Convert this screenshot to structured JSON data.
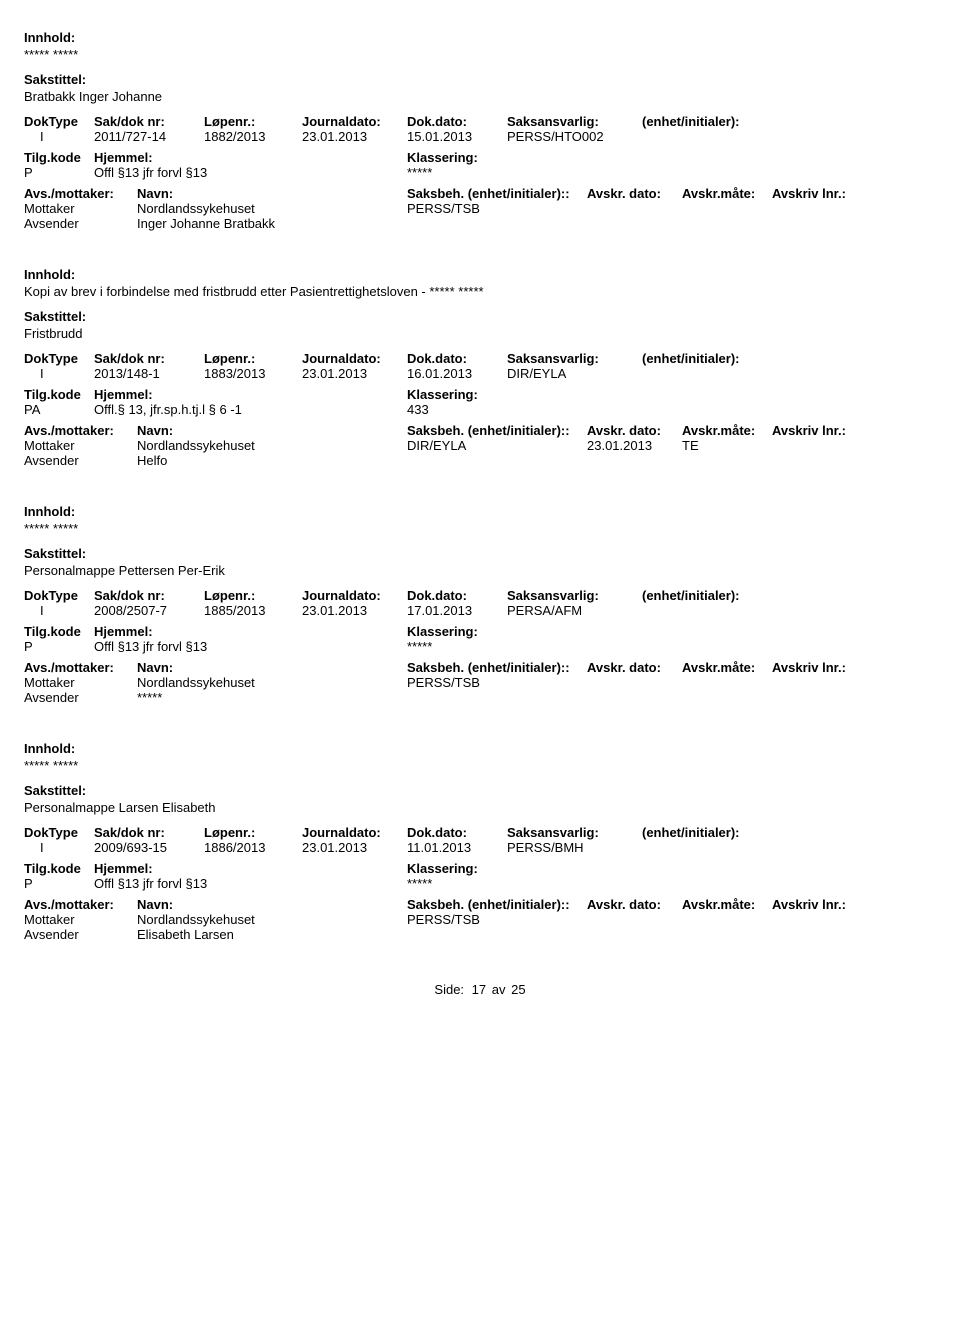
{
  "labels": {
    "innhold": "Innhold:",
    "sakstittel": "Sakstittel:",
    "dokType": "DokType",
    "sakdok": "Sak/dok nr:",
    "lopenr": "Løpenr.:",
    "journaldato": "Journaldato:",
    "dokdato": "Dok.dato:",
    "saksansvarlig": "Saksansvarlig:",
    "enhet": "(enhet/initialer):",
    "tilgkode": "Tilg.kode",
    "hjemmel": "Hjemmel:",
    "klassering": "Klassering:",
    "avsMottaker": "Avs./mottaker:",
    "navn": "Navn:",
    "saksbeh": "Saksbeh.",
    "avskrDato": "Avskr. dato:",
    "avskrMate": "Avskr.måte:",
    "avskrivLnr": "Avskriv lnr.:",
    "mottaker": "Mottaker",
    "avsender": "Avsender",
    "side": "Side:",
    "av": "av"
  },
  "footer": {
    "page": "17",
    "total": "25"
  },
  "records": [
    {
      "innhold": "***** *****",
      "sakstittel": "Bratbakk Inger Johanne",
      "dokType": "I",
      "sakdok": "2011/727-14",
      "lopenr": "1882/2013",
      "journaldato": "23.01.2013",
      "dokdato": "15.01.2013",
      "saksansvarlig": "PERSS/HTO002",
      "tilgkode": "P",
      "hjemmel": "Offl §13 jfr forvl §13",
      "klassering": "*****",
      "mottakerNavn": "Nordlandssykehuset",
      "saksbeh": "PERSS/TSB",
      "avskrDato": "",
      "avskrMate": "",
      "avsenderNavn": "Inger Johanne Bratbakk"
    },
    {
      "innhold": "Kopi av brev i forbindelse med fristbrudd etter Pasientrettighetsloven - ***** *****",
      "sakstittel": "Fristbrudd",
      "dokType": "I",
      "sakdok": "2013/148-1",
      "lopenr": "1883/2013",
      "journaldato": "23.01.2013",
      "dokdato": "16.01.2013",
      "saksansvarlig": "DIR/EYLA",
      "tilgkode": "PA",
      "hjemmel": "Offl.§ 13, jfr.sp.h.tj.l § 6 -1",
      "klassering": "433",
      "mottakerNavn": "Nordlandssykehuset",
      "saksbeh": "DIR/EYLA",
      "avskrDato": "23.01.2013",
      "avskrMate": "TE",
      "avsenderNavn": "Helfo"
    },
    {
      "innhold": "***** *****",
      "sakstittel": "Personalmappe Pettersen Per-Erik",
      "dokType": "I",
      "sakdok": "2008/2507-7",
      "lopenr": "1885/2013",
      "journaldato": "23.01.2013",
      "dokdato": "17.01.2013",
      "saksansvarlig": "PERSA/AFM",
      "tilgkode": "P",
      "hjemmel": "Offl §13 jfr forvl §13",
      "klassering": "*****",
      "mottakerNavn": "Nordlandssykehuset",
      "saksbeh": "PERSS/TSB",
      "avskrDato": "",
      "avskrMate": "",
      "avsenderNavn": "*****"
    },
    {
      "innhold": "***** *****",
      "sakstittel": "Personalmappe Larsen Elisabeth",
      "dokType": "I",
      "sakdok": "2009/693-15",
      "lopenr": "1886/2013",
      "journaldato": "23.01.2013",
      "dokdato": "11.01.2013",
      "saksansvarlig": "PERSS/BMH",
      "tilgkode": "P",
      "hjemmel": "Offl §13 jfr forvl §13",
      "klassering": "*****",
      "mottakerNavn": "Nordlandssykehuset",
      "saksbeh": "PERSS/TSB",
      "avskrDato": "",
      "avskrMate": "",
      "avsenderNavn": "Elisabeth Larsen"
    }
  ]
}
